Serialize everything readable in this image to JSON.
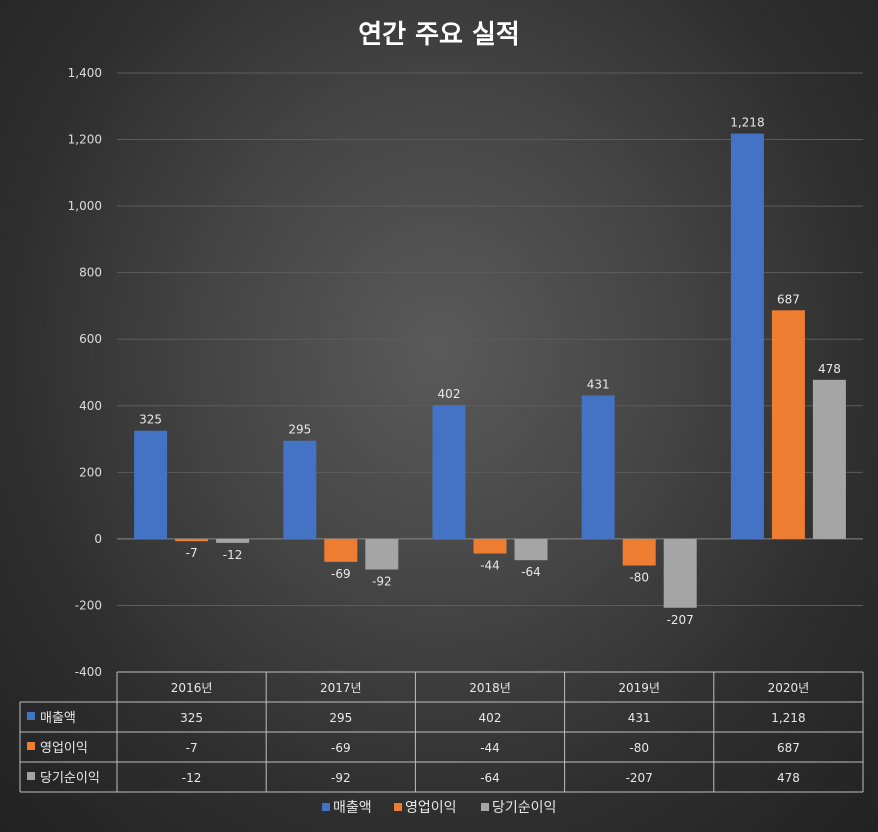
{
  "chart_data": {
    "type": "bar",
    "title": "연간 주요 실적",
    "categories": [
      "2016년",
      "2017년",
      "2018년",
      "2019년",
      "2020년"
    ],
    "series": [
      {
        "name": "매출액",
        "values": [
          325,
          295,
          402,
          431,
          1218
        ],
        "labels": [
          "325",
          "295",
          "402",
          "431",
          "1,218"
        ],
        "color": "#4472c4"
      },
      {
        "name": "영업이익",
        "values": [
          -7,
          -69,
          -44,
          -80,
          687
        ],
        "labels": [
          "-7",
          "-69",
          "-44",
          "-80",
          "687"
        ],
        "color": "#ed7d31"
      },
      {
        "name": "당기순이익",
        "values": [
          -12,
          -92,
          -64,
          -207,
          478
        ],
        "labels": [
          "-12",
          "-92",
          "-64",
          "-207",
          "478"
        ],
        "color": "#a5a5a5"
      }
    ],
    "ylim": [
      -400,
      1400
    ],
    "yticks": [
      {
        "value": 1400,
        "label": "1,400"
      },
      {
        "value": 1200,
        "label": "1,200"
      },
      {
        "value": 1000,
        "label": "1,000"
      },
      {
        "value": 800,
        "label": "800"
      },
      {
        "value": 600,
        "label": "600"
      },
      {
        "value": 400,
        "label": "400"
      },
      {
        "value": 200,
        "label": "200"
      },
      {
        "value": 0,
        "label": "0"
      },
      {
        "value": -200,
        "label": "-200"
      },
      {
        "value": -400,
        "label": "-400"
      }
    ],
    "grid": true,
    "legend_position": "bottom",
    "data_table": true
  }
}
